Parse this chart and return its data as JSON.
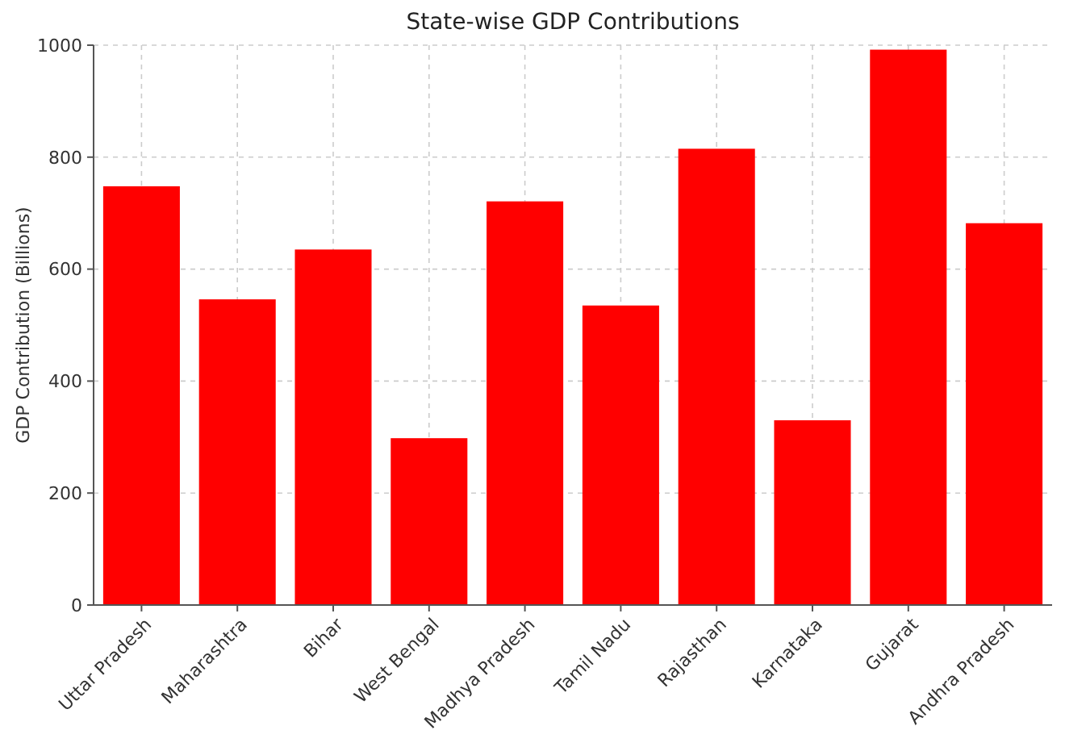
{
  "chart_data": {
    "type": "bar",
    "title": "State-wise GDP Contributions",
    "ylabel": "GDP Contribution (Billions)",
    "categories": [
      "Uttar Pradesh",
      "Maharashtra",
      "Bihar",
      "West Bengal",
      "Madhya Pradesh",
      "Tamil Nadu",
      "Rajasthan",
      "Karnataka",
      "Gujarat",
      "Andhra Pradesh"
    ],
    "values": [
      748,
      546,
      635,
      298,
      721,
      535,
      815,
      330,
      992,
      682
    ],
    "color": "#ff0000",
    "ylim": [
      0,
      1000
    ],
    "yticks": [
      0,
      200,
      400,
      600,
      800,
      1000
    ],
    "grid": true
  }
}
